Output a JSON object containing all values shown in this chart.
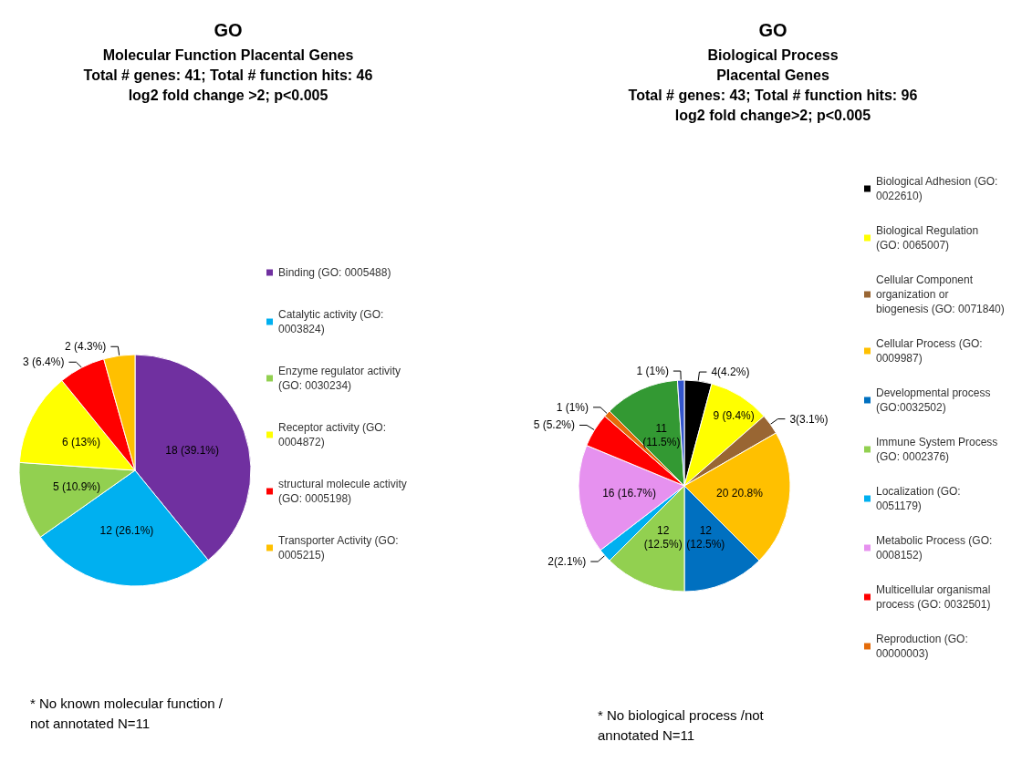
{
  "chart_data": [
    {
      "type": "pie",
      "title": "GO",
      "subtitle": "Molecular Function Placental Genes\nTotal # genes: 41; Total # function hits: 46\nlog2 fold change >2; p<0.005",
      "categories": [
        "Binding (GO: 0005488)",
        "Catalytic activity (GO: 0003824)",
        "Enzyme regulator activity (GO: 0030234)",
        "Receptor activity (GO: 0004872)",
        "structural molecule activity (GO: 0005198)",
        "Transporter Activity (GO: 0005215)"
      ],
      "values": [
        18,
        12,
        5,
        6,
        3,
        2
      ],
      "colors": [
        "#7030a0",
        "#00b0f0",
        "#92d050",
        "#ffff00",
        "#ff0000",
        "#ffc000"
      ],
      "value_labels": [
        "18 (39.1%)",
        "12 (26.1%)",
        "5 (10.9%)",
        "6 (13%)",
        "3 (6.4%)",
        "2 (4.3%)"
      ],
      "legend": "right",
      "annotations": [
        "* No known molecular function /not annotated N=11"
      ]
    },
    {
      "type": "pie",
      "title": "GO",
      "subtitle": "Biological Process\nPlacental Genes\nTotal # genes: 43; Total # function hits: 96\nlog2 fold change>2; p<0.005",
      "categories": [
        "Biological Adhesion (GO: 0022610)",
        "Biological Regulation (GO: 0065007)",
        "Cellular Component organization or biogenesis (GO: 0071840)",
        "Cellular Process (GO: 0009987)",
        "Developmental process (GO:0032502)",
        "Immune System Process (GO: 0002376)",
        "Localization (GO: 0051179)",
        "Metabolic Process (GO: 0008152)",
        "Multicellular organismal process (GO: 0032501)",
        "Reproduction (GO: 00000003)",
        null,
        null
      ],
      "values": [
        4,
        9,
        3,
        20,
        12,
        12,
        2,
        16,
        5,
        1,
        11,
        1
      ],
      "colors": [
        "#000000",
        "#ffff00",
        "#996633",
        "#ffc000",
        "#0070c0",
        "#92d050",
        "#00b0f0",
        "#e691ef",
        "#ff0000",
        "#e46c0a",
        "#339933",
        "#3355cc"
      ],
      "value_labels": [
        "4(4.2%)",
        "9 (9.4%)",
        "3(3.1%)",
        "20 20.8%",
        "12\n(12.5%)",
        "12\n(12.5%)",
        "2(2.1%)",
        "16 (16.7%)",
        "5 (5.2%)",
        "1 (1%)",
        "11\n(11.5%)",
        "1 (1%)"
      ],
      "legend": "right",
      "annotations": [
        "* No biological process /not annotated N=11"
      ]
    }
  ]
}
